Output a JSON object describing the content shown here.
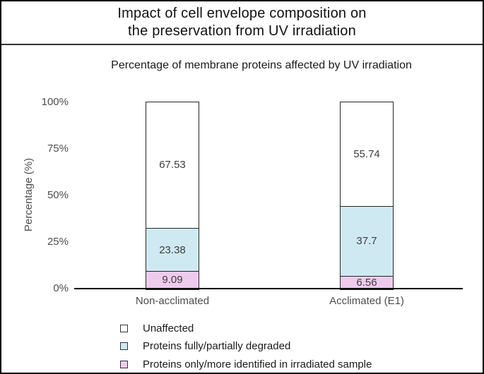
{
  "header": {
    "title_line1": "Impact of cell envelope composition on",
    "title_line2": "the preservation from UV irradiation"
  },
  "chart_data": {
    "type": "bar",
    "stacked": true,
    "title": "Impact of cell envelope composition on the preservation from UV irradiation",
    "subtitle": "Percentage of membrane proteins affected by UV irradiation",
    "xlabel": "",
    "ylabel": "Percentage (%)",
    "ylim": [
      0,
      100
    ],
    "ytick_labels": [
      "0%",
      "25%",
      "50%",
      "75%",
      "100%"
    ],
    "ytick_values": [
      0,
      25,
      50,
      75,
      100
    ],
    "grid": false,
    "legend_position": "bottom-left",
    "categories": [
      "Non-acclimated",
      "Acclimated (E1)"
    ],
    "series": [
      {
        "name": "Unaffected",
        "color": "#ffffff",
        "values": [
          67.53,
          55.74
        ],
        "labels": [
          "67.53",
          "55.74"
        ]
      },
      {
        "name": "Proteins fully/partially degraded",
        "color": "#cfe9f2",
        "values": [
          23.38,
          37.7
        ],
        "labels": [
          "23.38",
          "37.7"
        ]
      },
      {
        "name": "Proteins only/more identified in irradiated sample",
        "color": "#eecbed",
        "values": [
          9.09,
          6.56
        ],
        "labels": [
          "9.09",
          "6.56"
        ]
      }
    ],
    "style": {
      "bar_border_color": "#262626",
      "axis_line_color": "#000000",
      "axis_text_color": "#4d4d4d",
      "value_label_color": "#3d3d3d",
      "background": "#ffffff"
    }
  }
}
